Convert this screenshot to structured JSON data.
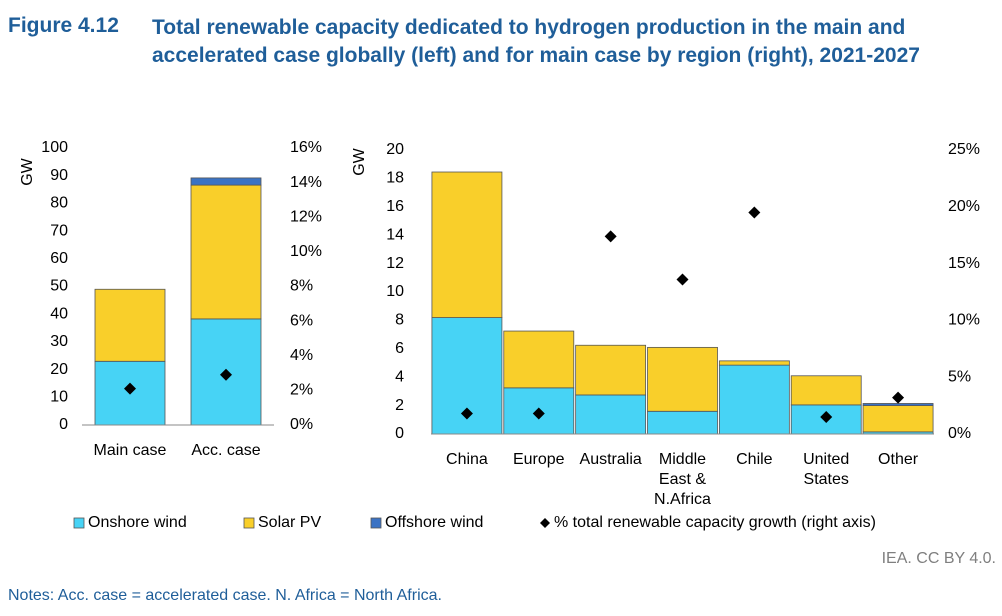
{
  "figure_label": "Figure 4.12",
  "title": "Total renewable capacity dedicated to hydrogen production in the main and accelerated case globally (left) and for main case by region (right), 2021-2027",
  "source": "IEA. CC BY 4.0.",
  "notes": "Notes: Acc. case = accelerated case. N. Africa = North Africa.",
  "chart_data": [
    {
      "type": "bar",
      "stacked": true,
      "y_label": "GW",
      "categories": [
        "Main case",
        "Acc. case"
      ],
      "series": [
        {
          "name": "Onshore wind",
          "color": "#47d3f5",
          "values": [
            23,
            38.3
          ]
        },
        {
          "name": "Solar PV",
          "color": "#f9cf2a",
          "values": [
            26,
            48.3
          ]
        },
        {
          "name": "Offshore wind",
          "color": "#3b73c4",
          "values": [
            0,
            2.6
          ]
        },
        {
          "name": "% total renewable capacity growth (right axis)",
          "color": "#000000",
          "marker": "diamond",
          "axis": "y2",
          "values": [
            2.1,
            2.9
          ]
        }
      ],
      "ylim": [
        0,
        100
      ],
      "yticks": [
        0,
        10,
        20,
        30,
        40,
        50,
        60,
        70,
        80,
        90,
        100
      ],
      "y2lim": [
        0,
        16
      ],
      "y2ticks": [
        {
          "value": 0,
          "label": "0%"
        },
        {
          "value": 2,
          "label": "2%"
        },
        {
          "value": 4,
          "label": "4%"
        },
        {
          "value": 6,
          "label": "6%"
        },
        {
          "value": 8,
          "label": "8%"
        },
        {
          "value": 10,
          "label": "10%"
        },
        {
          "value": 12,
          "label": "12%"
        },
        {
          "value": 14,
          "label": "14%"
        },
        {
          "value": 16,
          "label": "16%"
        }
      ],
      "grid": false
    },
    {
      "type": "bar",
      "stacked": true,
      "y_label": "GW",
      "categories": [
        "China",
        "Europe",
        "Australia",
        "Middle East & N.Africa",
        "Chile",
        "United States",
        "Other"
      ],
      "series": [
        {
          "name": "Onshore wind",
          "color": "#47d3f5",
          "values": [
            8.2,
            3.25,
            2.75,
            1.6,
            4.85,
            2.05,
            0.15
          ]
        },
        {
          "name": "Solar PV",
          "color": "#f9cf2a",
          "values": [
            10.25,
            4.0,
            3.5,
            4.5,
            0.3,
            2.05,
            1.85
          ]
        },
        {
          "name": "Offshore wind",
          "color": "#3b73c4",
          "values": [
            0,
            0,
            0,
            0,
            0,
            0,
            0.15
          ]
        },
        {
          "name": "% total renewable capacity growth (right axis)",
          "color": "#000000",
          "marker": "diamond",
          "axis": "y2",
          "values": [
            1.8,
            1.8,
            17.4,
            13.6,
            19.5,
            1.5,
            3.2
          ]
        }
      ],
      "ylim": [
        0,
        20
      ],
      "yticks": [
        0,
        2,
        4,
        6,
        8,
        10,
        12,
        14,
        16,
        18,
        20
      ],
      "y2lim": [
        0,
        25
      ],
      "y2ticks": [
        {
          "value": 0,
          "label": "0%"
        },
        {
          "value": 5,
          "label": "5%"
        },
        {
          "value": 10,
          "label": "10%"
        },
        {
          "value": 15,
          "label": "15%"
        },
        {
          "value": 20,
          "label": "20%"
        },
        {
          "value": 25,
          "label": "25%"
        }
      ],
      "grid": false
    }
  ]
}
